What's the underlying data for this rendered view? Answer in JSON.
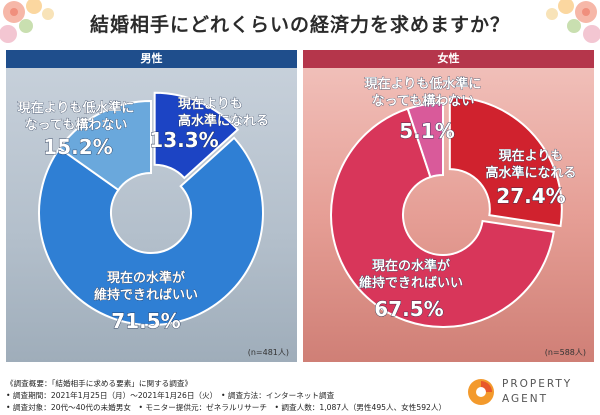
{
  "title": "結婚相手にどれくらいの経済力を求めますか？",
  "chart_data": [
    {
      "type": "pie",
      "panel_label": "男性",
      "n_note": "(n=481人)",
      "slices": [
        {
          "label_line1": "現在よりも",
          "label_line2": "高水準になれる",
          "value": 13.3,
          "value_label": "13.3%",
          "color": "#1c44c4"
        },
        {
          "label_line1": "現在の水準が",
          "label_line2": "維持できればいい",
          "value": 71.5,
          "value_label": "71.5%",
          "color": "#2f7fd4"
        },
        {
          "label_line1": "現在よりも低水準に",
          "label_line2": "なっても構わない",
          "value": 15.2,
          "value_label": "15.2%",
          "color": "#6aa8dc"
        }
      ]
    },
    {
      "type": "pie",
      "panel_label": "女性",
      "n_note": "(n=588人)",
      "slices": [
        {
          "label_line1": "現在よりも",
          "label_line2": "高水準になれる",
          "value": 27.4,
          "value_label": "27.4%",
          "color": "#d0222e"
        },
        {
          "label_line1": "現在の水準が",
          "label_line2": "維持できればいい",
          "value": 67.5,
          "value_label": "67.5%",
          "color": "#d8365a"
        },
        {
          "label_line1": "現在よりも低水準に",
          "label_line2": "なっても構わない",
          "value": 5.1,
          "value_label": "5.1%",
          "color": "#d95a9a"
        }
      ]
    }
  ],
  "footer": {
    "line1": "《調査概要：「結婚相手に求める要素」に関する調査》",
    "line2": "• 調査期間：2021年1月25日（月）～2021年1月26日（火）　• 調査方法：インターネット調査",
    "line3": "• 調査対象：20代～40代の未婚男女　• モニター提供元：ゼネラルリサーチ　• 調査人数：1,087人（男性495人、女性592人）"
  },
  "logo": {
    "line1": "PROPERTY",
    "line2": "AGENT"
  }
}
